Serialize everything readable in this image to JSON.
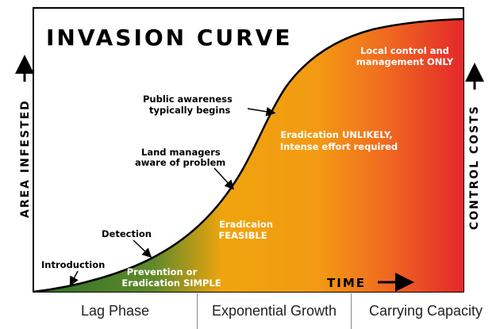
{
  "title": "INVASION CURVE",
  "y_axis_left": "AREA INFESTED",
  "y_axis_right": "CONTROL COSTS",
  "x_axis": "TIME",
  "curve_labels": {
    "introduction": "Introduction",
    "detection": "Detection",
    "land_managers_line1": "Land managers",
    "land_managers_line2": "aware of problem",
    "public_line1": "Public awareness",
    "public_line2": "typically begins"
  },
  "region_labels": {
    "simple_line1": "Prevention or",
    "simple_line2": "Eradication SIMPLE",
    "feasible_line1": "Eradicaion",
    "feasible_line2": "FEASIBLE",
    "unlikely_line1": "Eradication UNLIKELY,",
    "unlikely_line2": "Intense effort required",
    "local_line1": "Local control and",
    "local_line2": "management ONLY"
  },
  "phases": [
    "Lag Phase",
    "Exponential Growth",
    "Carrying Capacity"
  ],
  "colors": {
    "green": "#3a7d2a",
    "yellow": "#f0a30a",
    "orange": "#f07818",
    "red": "#e52a2a",
    "curve": "#000000"
  }
}
